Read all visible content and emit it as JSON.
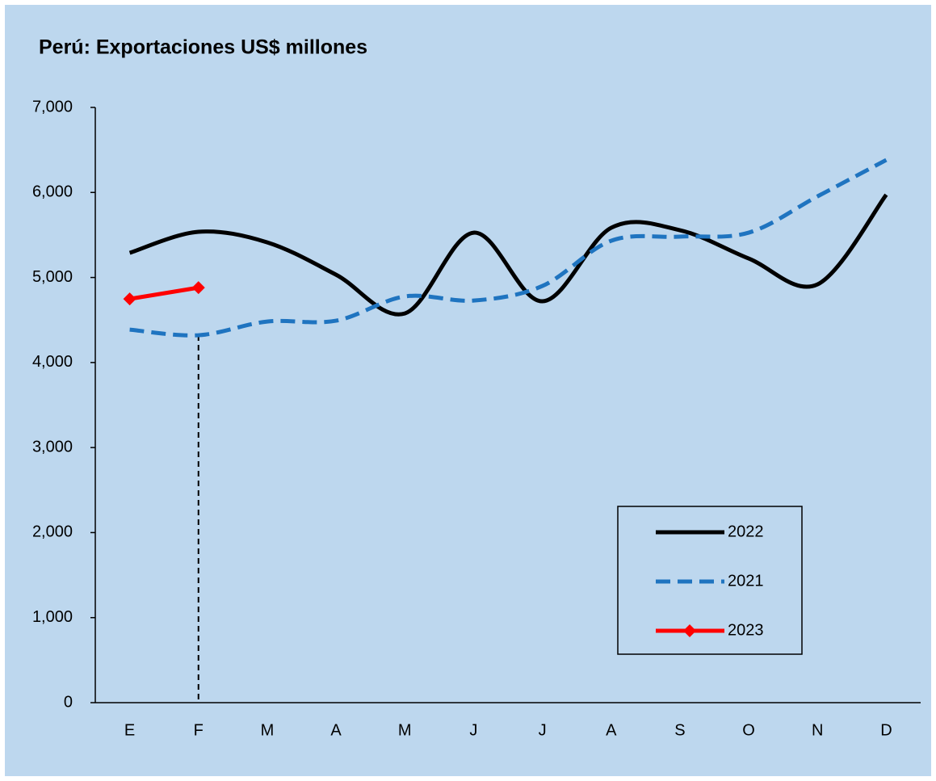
{
  "chart_data": {
    "type": "line",
    "title": "Perú: Exportaciones US$ millones",
    "categories": [
      "E",
      "F",
      "M",
      "A",
      "M",
      "J",
      "J",
      "A",
      "S",
      "O",
      "N",
      "D"
    ],
    "series": [
      {
        "name": "2022",
        "color": "#000000",
        "style": "solid",
        "values": [
          5290,
          5537,
          5413,
          5033,
          4577,
          5527,
          4720,
          5584,
          5556,
          5223,
          4919,
          5973
        ]
      },
      {
        "name": "2021",
        "color": "#1f74c0",
        "style": "dashed",
        "values": [
          4387,
          4321,
          4482,
          4492,
          4777,
          4729,
          4900,
          5432,
          5480,
          5527,
          5954,
          6382
        ]
      },
      {
        "name": "2023",
        "color": "#ff0000",
        "style": "solid",
        "marker": "diamond",
        "values": [
          4748,
          4881,
          null,
          null,
          null,
          null,
          null,
          null,
          null,
          null,
          null,
          null
        ]
      }
    ],
    "ylim": [
      0,
      7000
    ],
    "yticks": [
      0,
      {
        "value": 1000,
        "label": "1,000"
      },
      {
        "value": 2000,
        "label": "2,000"
      },
      {
        "value": 3000,
        "label": "3,000"
      },
      {
        "value": 4000,
        "label": "4,000"
      },
      {
        "value": 5000,
        "label": "5,000"
      },
      {
        "value": 6000,
        "label": "6,000"
      },
      {
        "value": 7000,
        "label": "7,000"
      }
    ],
    "grid": false,
    "legend": "lower right"
  }
}
